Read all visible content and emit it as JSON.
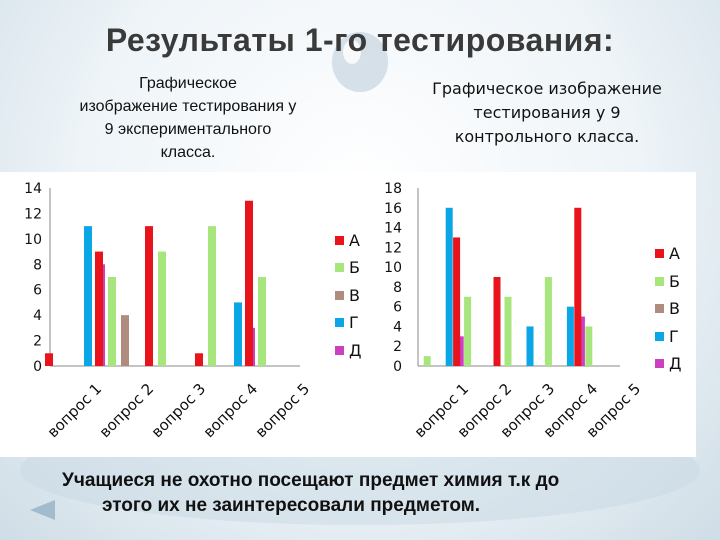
{
  "slide": {
    "title": "Результаты 1-го тестирования:",
    "caption_line1": "Учащиеся не охотно посещают предмет химия т.к до",
    "caption_line2": "этого их не заинтересовали предметом."
  },
  "chart_data": [
    {
      "type": "bar",
      "title_lines": [
        "Графическое",
        "изображение тестирования у",
        "9 экспериментального",
        "класса."
      ],
      "categories": [
        "вопрос 1",
        "вопрос 2",
        "вопрос 3",
        "вопрос 4",
        "вопрос 5"
      ],
      "series": [
        {
          "name": "А",
          "color": "#e8131b",
          "values": [
            1,
            9,
            11,
            1,
            13
          ]
        },
        {
          "name": "Б",
          "color": "#a6e67c",
          "values": [
            0,
            7,
            9,
            11,
            7
          ]
        },
        {
          "name": "В",
          "color": "#b08c7e",
          "values": [
            0,
            4,
            0,
            0,
            0
          ]
        },
        {
          "name": "Г",
          "color": "#0aa6e6",
          "values": [
            11,
            0,
            0,
            5,
            0
          ]
        },
        {
          "name": "Д",
          "color": "#cc3fbf",
          "values": [
            8,
            0,
            0,
            3,
            0
          ]
        }
      ],
      "yticks": [
        0,
        2,
        4,
        6,
        8,
        10,
        12,
        14
      ],
      "ylim": [
        0,
        14
      ],
      "grid": false,
      "legend": "right"
    },
    {
      "type": "bar",
      "title_lines": [
        "Графическое изображение",
        "тестирования у 9",
        "контрольного класса."
      ],
      "categories": [
        "вопрос 1",
        "вопрос 2",
        "вопрос 3",
        "вопрос 4",
        "вопрос 5"
      ],
      "series": [
        {
          "name": "А",
          "color": "#e8131b",
          "values": [
            0,
            13,
            9,
            0,
            16
          ]
        },
        {
          "name": "Б",
          "color": "#a6e67c",
          "values": [
            1,
            7,
            7,
            9,
            4
          ]
        },
        {
          "name": "В",
          "color": "#b08c7e",
          "values": [
            0,
            0,
            0,
            0,
            0
          ]
        },
        {
          "name": "Г",
          "color": "#0aa6e6",
          "values": [
            16,
            0,
            4,
            6,
            0
          ]
        },
        {
          "name": "Д",
          "color": "#cc3fbf",
          "values": [
            3,
            0,
            0,
            5,
            0
          ]
        }
      ],
      "yticks": [
        0,
        2,
        4,
        6,
        8,
        10,
        12,
        14,
        16,
        18
      ],
      "ylim": [
        0,
        18
      ],
      "grid": false,
      "legend": "right"
    }
  ]
}
